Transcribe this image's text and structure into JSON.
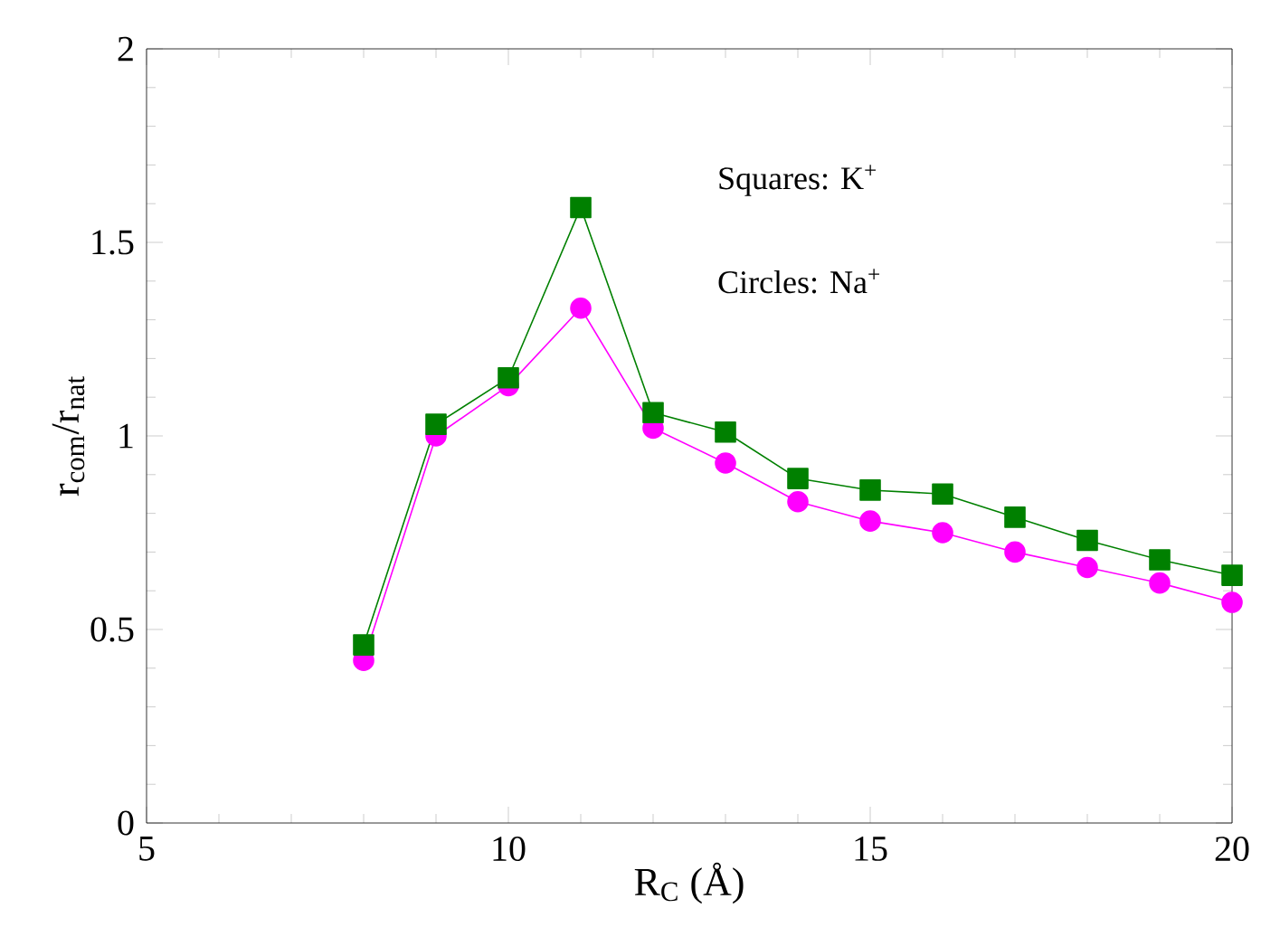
{
  "chart_data": {
    "type": "line",
    "xlabel": "R$_{C}$ (Å)",
    "ylabel": "r$_{com}$/r$_{nat}$",
    "annotations": [
      "Squares: K$^{+}$",
      "Circles: Na$^{+}$"
    ],
    "xlim": [
      5,
      20
    ],
    "ylim": [
      0,
      2
    ],
    "xticks": [
      5,
      10,
      15,
      20
    ],
    "yticks": [
      0,
      0.5,
      1,
      1.5,
      2
    ],
    "x": [
      8,
      9,
      10,
      11,
      12,
      13,
      14,
      15,
      16,
      17,
      18,
      19,
      20
    ],
    "line_style": "solid",
    "series": [
      {
        "color": "#ff00ff",
        "marker": "circle",
        "values": [
          0.42,
          1.0,
          1.13,
          1.33,
          1.02,
          0.93,
          0.83,
          0.78,
          0.75,
          0.7,
          0.66,
          0.62,
          0.57
        ]
      },
      {
        "color": "#008000",
        "marker": "square",
        "values": [
          0.46,
          1.03,
          1.15,
          1.59,
          1.06,
          1.01,
          0.89,
          0.86,
          0.85,
          0.79,
          0.73,
          0.68,
          0.64
        ]
      }
    ]
  }
}
